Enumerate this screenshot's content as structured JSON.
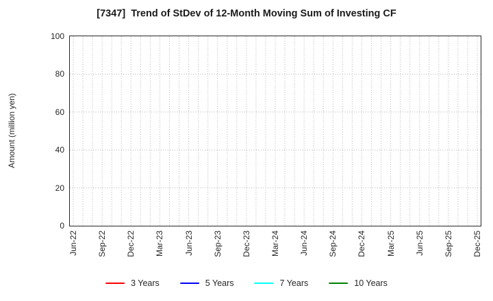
{
  "chart_data": {
    "type": "line",
    "title": "[7347]  Trend of StDev of 12-Month Moving Sum of Investing CF",
    "ylabel": "Amount (million yen)",
    "xlabel": "",
    "ylim": [
      0,
      100
    ],
    "y_ticks": [
      0,
      20,
      40,
      60,
      80,
      100
    ],
    "x_ticks": [
      "Jun-22",
      "Sep-22",
      "Dec-22",
      "Mar-23",
      "Jun-23",
      "Sep-23",
      "Dec-23",
      "Mar-24",
      "Jun-24",
      "Sep-24",
      "Dec-24",
      "Mar-25",
      "Jun-25",
      "Sep-25",
      "Dec-25"
    ],
    "grid": "dotted, monthly vertical lines and horizontal lines at y ticks",
    "legend_position": "bottom",
    "series": [
      {
        "name": "3 Years",
        "color": "#ff0000",
        "values": []
      },
      {
        "name": "5 Years",
        "color": "#0000ff",
        "values": []
      },
      {
        "name": "7 Years",
        "color": "#00ffff",
        "values": []
      },
      {
        "name": "10 Years",
        "color": "#008000",
        "values": []
      }
    ]
  },
  "colors": {
    "frame": "#262626",
    "grid": "#b0b0b0",
    "tick_text": "#262626",
    "title_text": "#1a1a1a",
    "background": "#ffffff"
  }
}
